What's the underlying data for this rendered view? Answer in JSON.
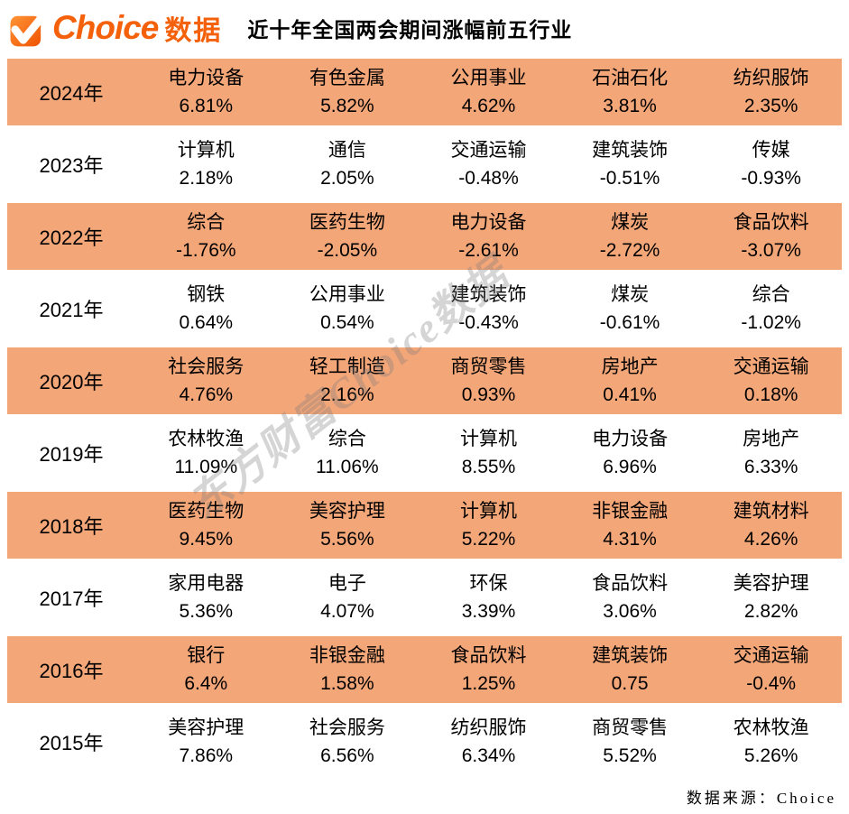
{
  "header": {
    "logo": {
      "brand": "Choice",
      "suffix": "数据"
    },
    "title": "近十年全国两会期间涨幅前五行业"
  },
  "watermark_text": "东方财富Choice数据",
  "footer": {
    "source_label": "数据来源：Choice"
  },
  "colors": {
    "accent_orange": "#f4610a",
    "row_highlight": "#f3a678",
    "text_black": "#000000"
  },
  "chart_data": {
    "type": "table",
    "title": "近十年全国两会期间涨幅前五行业",
    "source": "数据来源：Choice",
    "rows": [
      {
        "year": "2024年",
        "entries": [
          {
            "industry": "电力设备",
            "change": "6.81%"
          },
          {
            "industry": "有色金属",
            "change": "5.82%"
          },
          {
            "industry": "公用事业",
            "change": "4.62%"
          },
          {
            "industry": "石油石化",
            "change": "3.81%"
          },
          {
            "industry": "纺织服饰",
            "change": "2.35%"
          }
        ]
      },
      {
        "year": "2023年",
        "entries": [
          {
            "industry": "计算机",
            "change": "2.18%"
          },
          {
            "industry": "通信",
            "change": "2.05%"
          },
          {
            "industry": "交通运输",
            "change": "-0.48%"
          },
          {
            "industry": "建筑装饰",
            "change": "-0.51%"
          },
          {
            "industry": "传媒",
            "change": "-0.93%"
          }
        ]
      },
      {
        "year": "2022年",
        "entries": [
          {
            "industry": "综合",
            "change": "-1.76%"
          },
          {
            "industry": "医药生物",
            "change": "-2.05%"
          },
          {
            "industry": "电力设备",
            "change": "-2.61%"
          },
          {
            "industry": "煤炭",
            "change": "-2.72%"
          },
          {
            "industry": "食品饮料",
            "change": "-3.07%"
          }
        ]
      },
      {
        "year": "2021年",
        "entries": [
          {
            "industry": "钢铁",
            "change": "0.64%"
          },
          {
            "industry": "公用事业",
            "change": "0.54%"
          },
          {
            "industry": "建筑装饰",
            "change": "-0.43%"
          },
          {
            "industry": "煤炭",
            "change": "-0.61%"
          },
          {
            "industry": "综合",
            "change": "-1.02%"
          }
        ]
      },
      {
        "year": "2020年",
        "entries": [
          {
            "industry": "社会服务",
            "change": "4.76%"
          },
          {
            "industry": "轻工制造",
            "change": "2.16%"
          },
          {
            "industry": "商贸零售",
            "change": "0.93%"
          },
          {
            "industry": "房地产",
            "change": "0.41%"
          },
          {
            "industry": "交通运输",
            "change": "0.18%"
          }
        ]
      },
      {
        "year": "2019年",
        "entries": [
          {
            "industry": "农林牧渔",
            "change": "11.09%"
          },
          {
            "industry": "综合",
            "change": "11.06%"
          },
          {
            "industry": "计算机",
            "change": "8.55%"
          },
          {
            "industry": "电力设备",
            "change": "6.96%"
          },
          {
            "industry": "房地产",
            "change": "6.33%"
          }
        ]
      },
      {
        "year": "2018年",
        "entries": [
          {
            "industry": "医药生物",
            "change": "9.45%"
          },
          {
            "industry": "美容护理",
            "change": "5.56%"
          },
          {
            "industry": "计算机",
            "change": "5.22%"
          },
          {
            "industry": "非银金融",
            "change": "4.31%"
          },
          {
            "industry": "建筑材料",
            "change": "4.26%"
          }
        ]
      },
      {
        "year": "2017年",
        "entries": [
          {
            "industry": "家用电器",
            "change": "5.36%"
          },
          {
            "industry": "电子",
            "change": "4.07%"
          },
          {
            "industry": "环保",
            "change": "3.39%"
          },
          {
            "industry": "食品饮料",
            "change": "3.06%"
          },
          {
            "industry": "美容护理",
            "change": "2.82%"
          }
        ]
      },
      {
        "year": "2016年",
        "entries": [
          {
            "industry": "银行",
            "change": "6.4%"
          },
          {
            "industry": "非银金融",
            "change": "1.58%"
          },
          {
            "industry": "食品饮料",
            "change": "1.25%"
          },
          {
            "industry": "建筑装饰",
            "change": "0.75"
          },
          {
            "industry": "交通运输",
            "change": "-0.4%"
          }
        ]
      },
      {
        "year": "2015年",
        "entries": [
          {
            "industry": "美容护理",
            "change": "7.86%"
          },
          {
            "industry": "社会服务",
            "change": "6.56%"
          },
          {
            "industry": "纺织服饰",
            "change": "6.34%"
          },
          {
            "industry": "商贸零售",
            "change": "5.52%"
          },
          {
            "industry": "农林牧渔",
            "change": "5.26%"
          }
        ]
      }
    ]
  }
}
